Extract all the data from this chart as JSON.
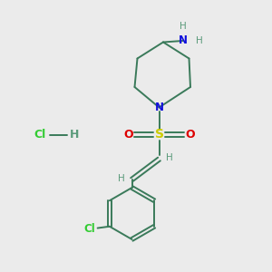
{
  "background_color": "#ebebeb",
  "bond_color": "#3a7a5a",
  "N_color": "#1010dd",
  "S_color": "#cccc00",
  "O_color": "#dd0000",
  "Cl_color": "#33cc33",
  "H_color": "#5a9a7a",
  "HCl_H_color": "#5a9a7a",
  "figsize": [
    3.0,
    3.0
  ],
  "dpi": 100,
  "lw": 1.4,
  "xlim": [
    0,
    10
  ],
  "ylim": [
    0,
    10
  ]
}
